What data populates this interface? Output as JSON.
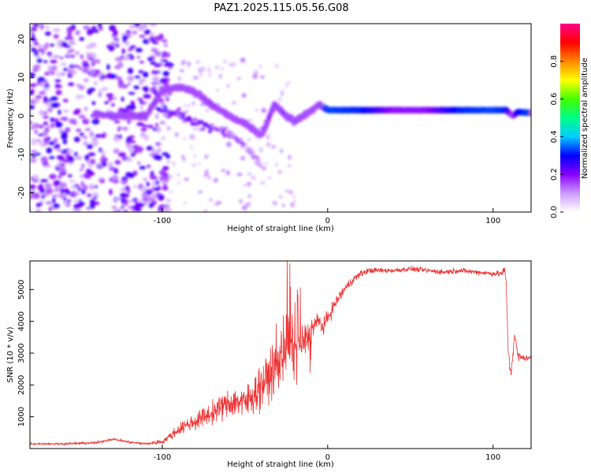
{
  "title": "PAZ1.2025.115.05.56.G08",
  "chart_data": [
    {
      "type": "heatmap",
      "xlabel": "Height of straight line (km)",
      "ylabel": "Frequency (Hz)",
      "xlim": [
        -180,
        123
      ],
      "ylim": [
        -25,
        24
      ],
      "xticks": [
        -100,
        0,
        100
      ],
      "yticks": [
        -20,
        -10,
        0,
        10,
        20
      ],
      "colorbar": {
        "label": "Normalized spectral amplitude",
        "range": [
          0,
          1
        ],
        "ticks": [
          "0.0",
          "0.2",
          "0.4",
          "0.6",
          "0.8"
        ],
        "colormap": [
          "#ffffff",
          "#cc99ff",
          "#8800ff",
          "#0000ff",
          "#00ccff",
          "#00ff88",
          "#44ff00",
          "#ffff00",
          "#ff8800",
          "#ff0000",
          "#ff0088"
        ]
      },
      "ridge": {
        "x": [
          -140,
          -130,
          -120,
          -110,
          -100,
          -92,
          -85,
          -80,
          -70,
          -60,
          -50,
          -40,
          -32,
          -25,
          -20,
          -15,
          -10,
          -5,
          0,
          20,
          40,
          60,
          80,
          100,
          108,
          112,
          115,
          123
        ],
        "frequency": [
          0.5,
          0,
          0,
          0,
          6.5,
          7.5,
          7,
          6,
          3,
          0,
          -2,
          -5,
          3,
          0,
          -1.5,
          0,
          1.5,
          3,
          1.5,
          1.5,
          1.5,
          1.5,
          1.5,
          1.5,
          1.5,
          0,
          1,
          0.8
        ],
        "amplitude": [
          0.35,
          0.3,
          0.25,
          0.3,
          0.3,
          0.3,
          0.25,
          0.2,
          0.2,
          0.2,
          0.2,
          0.15,
          0.25,
          0.3,
          0.4,
          0.35,
          0.4,
          0.3,
          0.95,
          0.9,
          0.55,
          0.55,
          0.9,
          0.95,
          0.9,
          0.4,
          0.85,
          0.95
        ]
      },
      "secondary_ridge": {
        "x": [
          -100,
          -90,
          -80,
          -70,
          -60,
          -55,
          -50,
          -45,
          -40
        ],
        "frequency": [
          1.5,
          0.5,
          -1.5,
          -3,
          -4.5,
          -6,
          -8,
          -10,
          -13
        ],
        "amplitude": [
          0.25,
          0.2,
          0.2,
          0.2,
          0.15,
          0.15,
          0.12,
          0.1,
          0.08
        ]
      }
    },
    {
      "type": "line",
      "xlabel": "Height of straight line (km)",
      "ylabel": "SNR (10 * v/v)",
      "xlim": [
        -180,
        123
      ],
      "ylim": [
        0,
        5900
      ],
      "xticks": [
        -100,
        0,
        100
      ],
      "yticks": [
        1000,
        2000,
        3000,
        4000,
        5000
      ],
      "color": "#ee3333",
      "series": [
        {
          "x": [
            -180,
            -160,
            -140,
            -130,
            -120,
            -110,
            -100,
            -95,
            -90,
            -85,
            -80,
            -75,
            -70,
            -65,
            -60,
            -55,
            -50,
            -45,
            -40,
            -35,
            -30,
            -25,
            -22,
            -20,
            -18,
            -15,
            -12,
            -10,
            -8,
            -5,
            -3,
            0,
            5,
            10,
            15,
            20,
            25,
            30,
            40,
            50,
            60,
            70,
            80,
            90,
            100,
            105,
            107,
            108,
            109,
            110,
            111,
            112,
            113,
            115,
            118,
            123
          ],
          "values": [
            150,
            150,
            180,
            300,
            200,
            150,
            220,
            400,
            600,
            750,
            850,
            1000,
            1100,
            1300,
            1400,
            1500,
            1400,
            1700,
            2000,
            2300,
            2800,
            3400,
            3300,
            3000,
            3200,
            3400,
            3500,
            3700,
            3900,
            4000,
            3800,
            4100,
            4600,
            5000,
            5300,
            5500,
            5600,
            5600,
            5600,
            5650,
            5600,
            5550,
            5600,
            5550,
            5500,
            5500,
            5600,
            5200,
            3200,
            2600,
            2400,
            3000,
            3600,
            2900,
            2850,
            2850
          ]
        }
      ],
      "noise_envelope": {
        "x": [
          -180,
          -140,
          -110,
          -100,
          -90,
          -80,
          -70,
          -60,
          -50,
          -40,
          -30,
          -25,
          -20,
          -15,
          -10,
          -5,
          0,
          10,
          20,
          30,
          100,
          108,
          112,
          123
        ],
        "amplitude": [
          40,
          60,
          60,
          120,
          250,
          400,
          500,
          650,
          800,
          1000,
          1200,
          1400,
          1300,
          900,
          600,
          400,
          350,
          250,
          150,
          120,
          120,
          200,
          300,
          80
        ]
      }
    }
  ]
}
